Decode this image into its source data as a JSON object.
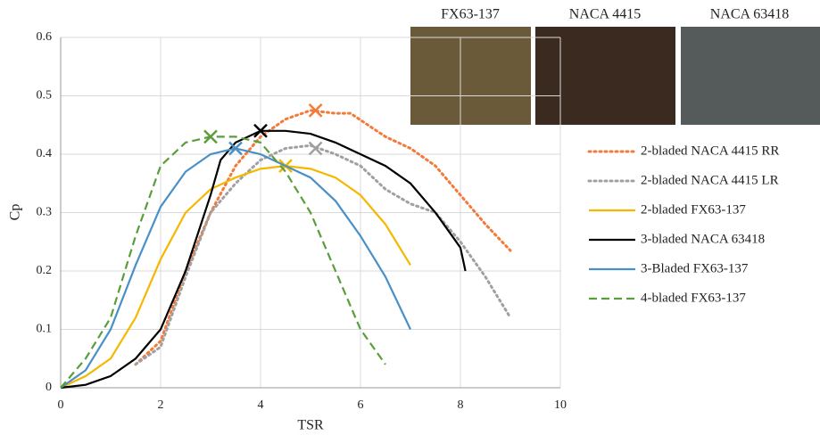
{
  "chart_data": {
    "type": "line",
    "x_label": "TSR",
    "y_label": "Cp",
    "xlim": [
      0,
      10
    ],
    "xticks": [
      0,
      2,
      4,
      6,
      8,
      10
    ],
    "ylim": [
      0,
      0.6
    ],
    "yticks": [
      0,
      0.1,
      0.2,
      0.3,
      0.4,
      0.5,
      0.6
    ],
    "grid": true,
    "legend": "right",
    "images": [
      {
        "label": "FX63-137"
      },
      {
        "label": "NACA 4415"
      },
      {
        "label": "NACA 63418"
      }
    ],
    "series": [
      {
        "name": "2-bladed NACA 4415 RR",
        "color": "#f47a3a",
        "line_style": "dotted",
        "x": [
          1.5,
          2,
          2.5,
          3,
          3.5,
          4,
          4.5,
          5,
          5.5,
          5.8,
          6.5,
          7,
          7.5,
          8,
          8.5,
          9
        ],
        "values": [
          0.04,
          0.08,
          0.2,
          0.3,
          0.38,
          0.43,
          0.46,
          0.475,
          0.47,
          0.47,
          0.43,
          0.41,
          0.38,
          0.33,
          0.28,
          0.235
        ],
        "peak": {
          "x": 5.1,
          "y": 0.475
        }
      },
      {
        "name": "2-bladed NACA 4415 LR",
        "color": "#a0a0a0",
        "line_style": "dotted",
        "x": [
          1.5,
          2,
          2.5,
          3,
          3.5,
          4,
          4.5,
          5,
          5.5,
          6,
          6.5,
          7,
          7.5,
          8,
          8.5,
          9
        ],
        "values": [
          0.04,
          0.07,
          0.19,
          0.3,
          0.35,
          0.39,
          0.41,
          0.415,
          0.4,
          0.38,
          0.34,
          0.315,
          0.3,
          0.25,
          0.19,
          0.12
        ],
        "peak": {
          "x": 5.1,
          "y": 0.41
        }
      },
      {
        "name": "2-bladed FX63-137",
        "color": "#f5b700",
        "line_style": "solid",
        "x": [
          0,
          0.5,
          1,
          1.5,
          2,
          2.5,
          3,
          3.5,
          4,
          4.5,
          5,
          5.5,
          6,
          6.5,
          7
        ],
        "values": [
          0,
          0.02,
          0.05,
          0.12,
          0.22,
          0.3,
          0.34,
          0.36,
          0.375,
          0.38,
          0.375,
          0.36,
          0.33,
          0.28,
          0.21
        ],
        "peak": {
          "x": 4.5,
          "y": 0.38
        }
      },
      {
        "name": "3-bladed NACA 63418",
        "color": "#000000",
        "line_style": "solid",
        "x": [
          0,
          0.5,
          1,
          1.5,
          2,
          2.5,
          3,
          3.2,
          3.5,
          4,
          4.5,
          5,
          5.5,
          6,
          6.5,
          7,
          7.5,
          8,
          8.1
        ],
        "values": [
          0,
          0.005,
          0.02,
          0.05,
          0.1,
          0.2,
          0.33,
          0.39,
          0.42,
          0.44,
          0.44,
          0.435,
          0.42,
          0.4,
          0.38,
          0.35,
          0.3,
          0.24,
          0.2
        ],
        "peak": {
          "x": 4,
          "y": 0.44
        }
      },
      {
        "name": "3-Bladed FX63-137",
        "color": "#4a90c8",
        "line_style": "solid",
        "x": [
          0,
          0.5,
          1,
          1.5,
          2,
          2.5,
          3,
          3.5,
          4,
          4.5,
          5,
          5.5,
          6,
          6.5,
          7
        ],
        "values": [
          0,
          0.03,
          0.1,
          0.21,
          0.31,
          0.37,
          0.4,
          0.41,
          0.4,
          0.38,
          0.36,
          0.32,
          0.26,
          0.19,
          0.1
        ],
        "peak": {
          "x": 3.5,
          "y": 0.41
        }
      },
      {
        "name": "4-bladed FX63-137",
        "color": "#5a9e3a",
        "line_style": "dashed",
        "x": [
          0,
          0.5,
          1,
          1.5,
          2,
          2.5,
          3,
          3.5,
          4,
          4.5,
          5,
          5.5,
          6,
          6.5
        ],
        "values": [
          0,
          0.05,
          0.12,
          0.26,
          0.38,
          0.42,
          0.43,
          0.43,
          0.42,
          0.37,
          0.3,
          0.2,
          0.1,
          0.04
        ],
        "peak": {
          "x": 3,
          "y": 0.43
        }
      }
    ]
  }
}
